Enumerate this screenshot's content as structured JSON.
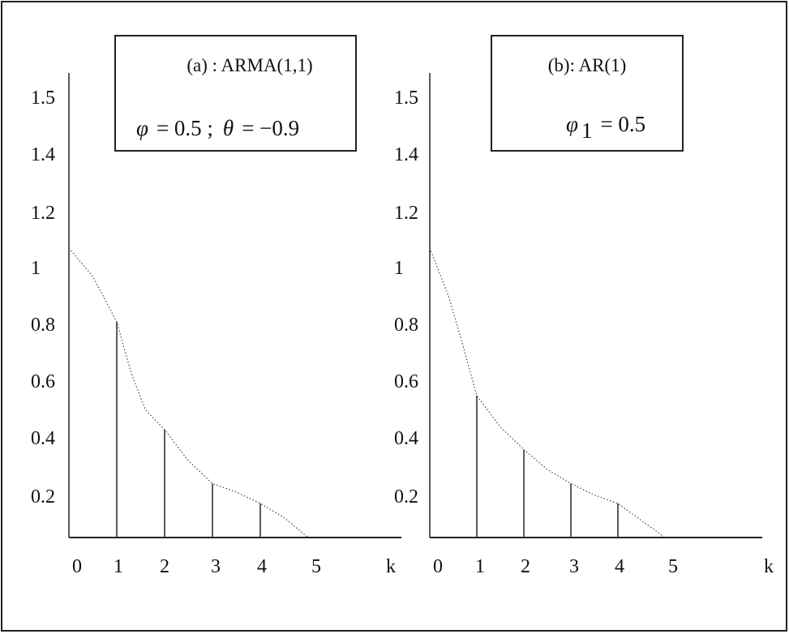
{
  "chart_data": [
    {
      "type": "bar",
      "panel": "a",
      "box_title": "(a)  : ARMA(1,1)",
      "params": {
        "phi_symbol": "φ",
        "phi_value": "= 0.5 ;",
        "theta_symbol": "θ",
        "theta_value": "= −0.9"
      },
      "y_ticks": [
        "1.5",
        "1.4",
        "1.2",
        "1",
        "0.8",
        "0.6",
        "0.4",
        "0.2"
      ],
      "x_ticks": [
        "0",
        "1",
        "2",
        "3",
        "4",
        "5"
      ],
      "x_axis_label": "k",
      "x": [
        1,
        2,
        3,
        4
      ],
      "values": [
        0.76,
        0.38,
        0.19,
        0.12
      ],
      "envelope": [
        [
          0,
          1.02
        ],
        [
          0.5,
          0.92
        ],
        [
          1,
          0.76
        ],
        [
          1.3,
          0.58
        ],
        [
          1.6,
          0.45
        ],
        [
          2,
          0.38
        ],
        [
          2.5,
          0.27
        ],
        [
          3,
          0.19
        ],
        [
          3.5,
          0.16
        ],
        [
          4,
          0.12
        ],
        [
          4.5,
          0.07
        ],
        [
          5,
          0.0
        ]
      ]
    },
    {
      "type": "bar",
      "panel": "b",
      "box_title": "(b): AR(1)",
      "params": {
        "phi_symbol": "φ",
        "phi_subscript": "1",
        "phi_value": "= 0.5"
      },
      "y_ticks": [
        "1.5",
        "1.4",
        "1.2",
        "1",
        "0.8",
        "0.6",
        "0.4",
        "0.2"
      ],
      "x_ticks": [
        "0",
        "1",
        "2",
        "3",
        "4",
        "5"
      ],
      "x_axis_label": "k",
      "x": [
        1,
        2,
        3,
        4
      ],
      "values": [
        0.5,
        0.31,
        0.19,
        0.12
      ],
      "envelope": [
        [
          0,
          1.02
        ],
        [
          0.4,
          0.85
        ],
        [
          0.7,
          0.68
        ],
        [
          1,
          0.5
        ],
        [
          1.5,
          0.39
        ],
        [
          2,
          0.31
        ],
        [
          2.5,
          0.24
        ],
        [
          3,
          0.19
        ],
        [
          3.5,
          0.15
        ],
        [
          4,
          0.12
        ],
        [
          4.5,
          0.06
        ],
        [
          5,
          0.0
        ]
      ]
    }
  ]
}
